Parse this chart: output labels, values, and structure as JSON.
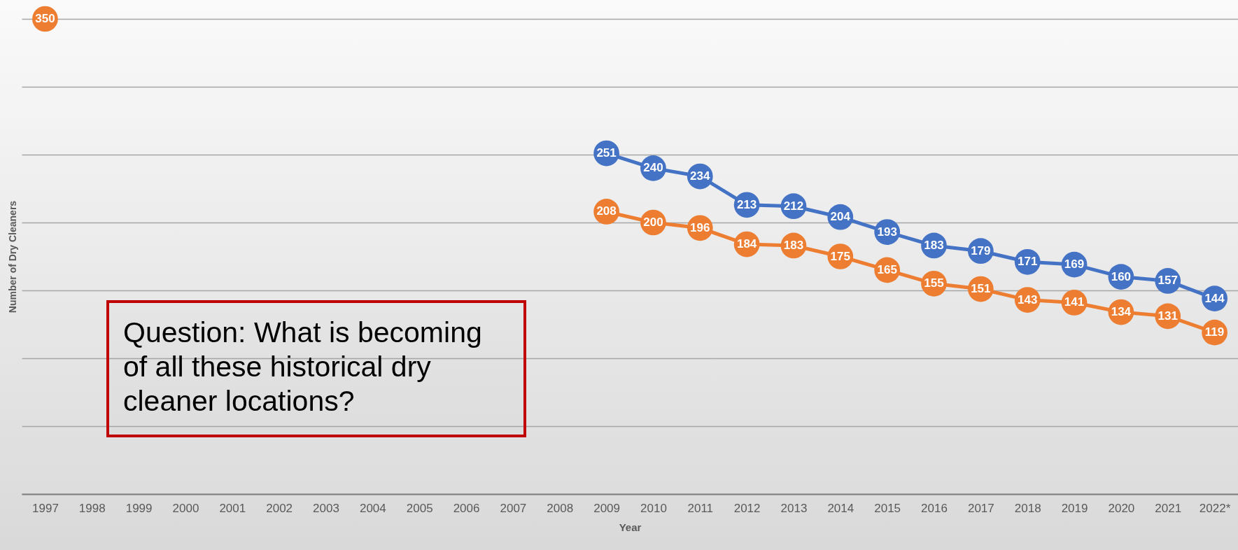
{
  "chart_data": {
    "type": "line",
    "xlabel": "Year",
    "ylabel": "Number of Dry Cleaners",
    "categories": [
      "1997",
      "1998",
      "1999",
      "2000",
      "2001",
      "2002",
      "2003",
      "2004",
      "2005",
      "2006",
      "2007",
      "2008",
      "2009",
      "2010",
      "2011",
      "2012",
      "2013",
      "2014",
      "2015",
      "2016",
      "2017",
      "2018",
      "2019",
      "2020",
      "2021",
      "2022*"
    ],
    "series": [
      {
        "color": "#4472c4",
        "values": [
          null,
          null,
          null,
          null,
          null,
          null,
          null,
          null,
          null,
          null,
          null,
          null,
          251,
          240,
          234,
          213,
          212,
          204,
          193,
          183,
          179,
          171,
          169,
          160,
          157,
          144
        ]
      },
      {
        "color": "#ed7d31",
        "values": [
          350,
          null,
          null,
          null,
          null,
          null,
          null,
          null,
          null,
          null,
          null,
          null,
          208,
          200,
          196,
          184,
          183,
          175,
          165,
          155,
          151,
          143,
          141,
          134,
          131,
          119
        ]
      }
    ],
    "ylim": [
      0,
      350
    ],
    "yticks": [
      {
        "value": 0,
        "label": null
      },
      {
        "value": 50,
        "label": null
      },
      {
        "value": 100,
        "label": null
      },
      {
        "value": 150,
        "label": null
      },
      {
        "value": 200,
        "label": null
      },
      {
        "value": 250,
        "label": null
      },
      {
        "value": 300,
        "label": null
      },
      {
        "value": 350,
        "label": null
      }
    ],
    "tick_labels": "x",
    "grid": "y",
    "legend": false,
    "marker": "circle",
    "line_style": "solid",
    "data_labels": true,
    "annotations": [
      "Question: What is becoming of all these historical dry cleaner locations?"
    ]
  }
}
